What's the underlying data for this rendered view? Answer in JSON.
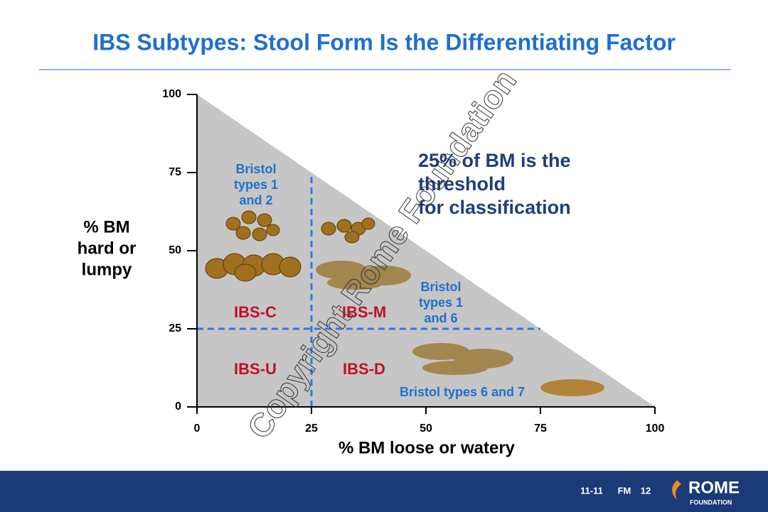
{
  "chart_data": {
    "type": "area",
    "title": "IBS Subtypes: Stool Form Is the Differentiating Factor",
    "x": [
      0,
      100
    ],
    "values": [
      100,
      0
    ],
    "color": "#c6c6c6",
    "xlim": [
      0,
      100
    ],
    "ylim": [
      0,
      100
    ],
    "xticks": [
      0,
      25,
      50,
      75,
      100
    ],
    "yticks": [
      0,
      25,
      50,
      75,
      100
    ],
    "x_label": "% BM loose or watery",
    "y_label": [
      "% BM",
      "hard or",
      "lumpy"
    ],
    "threshold": 25,
    "threshold_color": "#2a7de1",
    "regions": [
      "IBS-C",
      "IBS-M",
      "IBS-U",
      "IBS-D"
    ],
    "bristol_labels": [
      [
        "Bristol",
        "types 1",
        "and 2"
      ],
      [
        "Bristol",
        "types 1",
        "and 6"
      ],
      [
        "Bristol types 6 and 7"
      ]
    ],
    "annotation": [
      "25% of BM is the",
      "threshold",
      "for classification"
    ],
    "watermark": "Copyright Rome Foundation"
  },
  "footer": {
    "slide_id": "11-11",
    "module": "FM",
    "page": "12",
    "logo": "ROME",
    "logo_sub": "FOUNDATION"
  }
}
